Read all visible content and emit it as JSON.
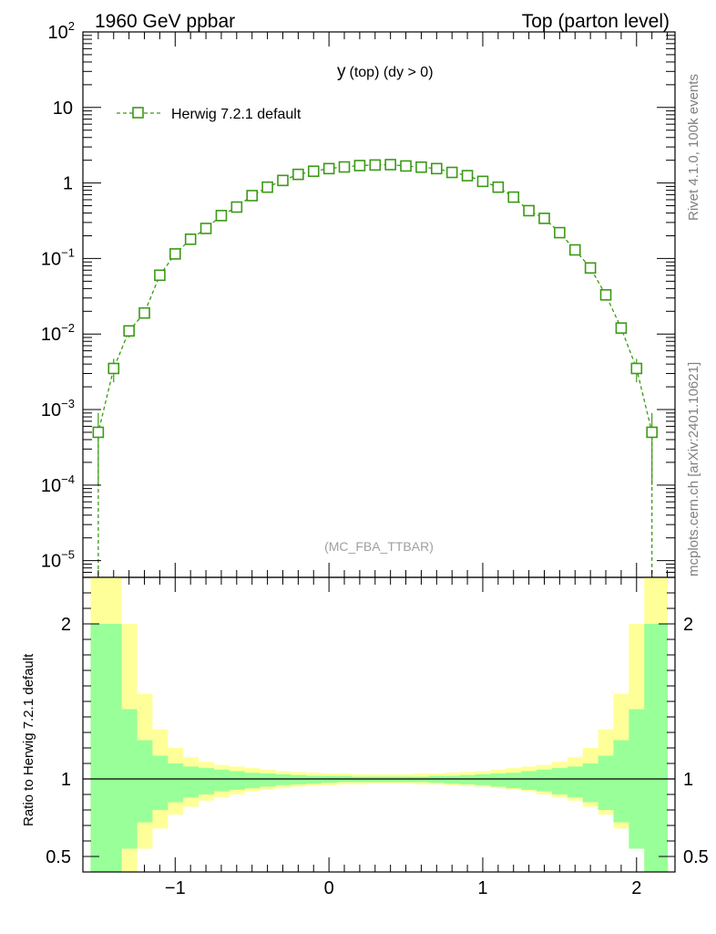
{
  "header": {
    "left_title": "1960 GeV ppbar",
    "right_title": "Top (parton level)"
  },
  "side_labels": {
    "rivet": "Rivet 4.1.0,  100k events",
    "source": "mcplots.cern.ch [arXiv:2401.10621]"
  },
  "colors": {
    "series": "#3a9a14",
    "band_inner": "#99ff99",
    "band_outer": "#ffff99",
    "watermark": "#a0a0a0"
  },
  "chart_data": [
    {
      "type": "line",
      "title": "y (top) (dy > 0)",
      "title_main": "y",
      "title_rest": "(top) (dy > 0)",
      "analysis_label": "(MC_FBA_TTBAR)",
      "xlim": [
        -1.6,
        2.25
      ],
      "ylim": [
        6e-06,
        100
      ],
      "yscale": "log",
      "ytick_labels": [
        {
          "value": 100,
          "base": "10",
          "exp": "2"
        },
        {
          "value": 10,
          "base": "10",
          "exp": ""
        },
        {
          "value": 1,
          "base": "1",
          "exp": ""
        },
        {
          "value": 0.1,
          "base": "10",
          "exp": "−1"
        },
        {
          "value": 0.01,
          "base": "10",
          "exp": "−2"
        },
        {
          "value": 0.001,
          "base": "10",
          "exp": "−3"
        },
        {
          "value": 0.0001,
          "base": "10",
          "exp": "−4"
        },
        {
          "value": 1e-05,
          "base": "10",
          "exp": "−5"
        }
      ],
      "series": [
        {
          "name": "Herwig 7.2.1 default",
          "marker": "open-square",
          "linestyle": "dashed",
          "x": [
            -1.5,
            -1.4,
            -1.3,
            -1.2,
            -1.1,
            -1.0,
            -0.9,
            -0.8,
            -0.7,
            -0.6,
            -0.5,
            -0.4,
            -0.3,
            -0.2,
            -0.1,
            0.0,
            0.1,
            0.2,
            0.3,
            0.4,
            0.5,
            0.6,
            0.7,
            0.8,
            0.9,
            1.0,
            1.1,
            1.2,
            1.3,
            1.4,
            1.5,
            1.6,
            1.7,
            1.8,
            1.9,
            2.0,
            2.1
          ],
          "y": [
            0.0005,
            0.0035,
            0.011,
            0.019,
            0.06,
            0.115,
            0.18,
            0.25,
            0.37,
            0.48,
            0.68,
            0.88,
            1.08,
            1.3,
            1.43,
            1.55,
            1.63,
            1.7,
            1.73,
            1.75,
            1.68,
            1.62,
            1.55,
            1.38,
            1.25,
            1.05,
            0.88,
            0.65,
            0.43,
            0.34,
            0.22,
            0.13,
            0.075,
            0.033,
            0.012,
            0.0035,
            0.0005
          ],
          "yerr": [
            0.0004,
            0.0012,
            0.002,
            0.002,
            0.004,
            0.006,
            0.007,
            0.009,
            0.011,
            0.013,
            0.015,
            0.017,
            0.019,
            0.021,
            0.022,
            0.023,
            0.023,
            0.024,
            0.024,
            0.024,
            0.024,
            0.023,
            0.023,
            0.022,
            0.021,
            0.019,
            0.018,
            0.016,
            0.012,
            0.011,
            0.009,
            0.007,
            0.005,
            0.003,
            0.002,
            0.0012,
            0.0004
          ]
        }
      ]
    },
    {
      "type": "area",
      "title": "Ratio panel",
      "ylabel": "Ratio to Herwig 7.2.1 default",
      "xlim": [
        -1.6,
        2.25
      ],
      "ylim": [
        0.4,
        2.3
      ],
      "xticks": [
        -1,
        0,
        1,
        2
      ],
      "xtick_labels": [
        "−1",
        "0",
        "1",
        "2"
      ],
      "yticks": [
        0.5,
        1,
        2
      ],
      "ytick_labels": [
        "0.5",
        "1",
        "2"
      ],
      "reference": 1,
      "bin_edges": [
        -1.55,
        -1.45,
        -1.35,
        -1.25,
        -1.15,
        -1.05,
        -0.95,
        -0.85,
        -0.75,
        -0.65,
        -0.55,
        -0.45,
        -0.35,
        -0.25,
        -0.15,
        -0.05,
        0.05,
        0.15,
        0.25,
        0.35,
        0.45,
        0.55,
        0.65,
        0.75,
        0.85,
        0.95,
        1.05,
        1.15,
        1.25,
        1.35,
        1.45,
        1.55,
        1.65,
        1.75,
        1.85,
        1.95,
        2.05,
        2.2
      ],
      "inner_band": {
        "lo": [
          0.3,
          0.3,
          0.55,
          0.72,
          0.8,
          0.85,
          0.88,
          0.9,
          0.92,
          0.93,
          0.94,
          0.95,
          0.96,
          0.965,
          0.97,
          0.975,
          0.98,
          0.98,
          0.98,
          0.98,
          0.98,
          0.98,
          0.975,
          0.97,
          0.965,
          0.96,
          0.95,
          0.94,
          0.93,
          0.92,
          0.9,
          0.88,
          0.85,
          0.8,
          0.72,
          0.55,
          0.3
        ],
        "hi": [
          2.0,
          2.0,
          1.45,
          1.25,
          1.15,
          1.1,
          1.08,
          1.07,
          1.06,
          1.05,
          1.04,
          1.035,
          1.03,
          1.025,
          1.02,
          1.02,
          1.02,
          1.015,
          1.015,
          1.015,
          1.015,
          1.015,
          1.02,
          1.02,
          1.025,
          1.03,
          1.035,
          1.04,
          1.05,
          1.06,
          1.07,
          1.08,
          1.1,
          1.15,
          1.25,
          1.45,
          2.0
        ]
      },
      "outer_band": {
        "lo": [
          0.3,
          0.3,
          0.3,
          0.55,
          0.68,
          0.77,
          0.82,
          0.86,
          0.88,
          0.9,
          0.92,
          0.93,
          0.94,
          0.95,
          0.955,
          0.96,
          0.965,
          0.965,
          0.97,
          0.97,
          0.97,
          0.965,
          0.965,
          0.96,
          0.955,
          0.95,
          0.94,
          0.93,
          0.92,
          0.9,
          0.88,
          0.86,
          0.82,
          0.77,
          0.68,
          0.55,
          0.3
        ],
        "hi": [
          2.3,
          2.3,
          2.0,
          1.55,
          1.32,
          1.2,
          1.14,
          1.11,
          1.09,
          1.08,
          1.07,
          1.06,
          1.05,
          1.045,
          1.04,
          1.035,
          1.035,
          1.03,
          1.03,
          1.03,
          1.03,
          1.035,
          1.035,
          1.04,
          1.045,
          1.05,
          1.06,
          1.07,
          1.08,
          1.09,
          1.11,
          1.14,
          1.2,
          1.32,
          1.55,
          2.0,
          2.3
        ]
      }
    }
  ]
}
